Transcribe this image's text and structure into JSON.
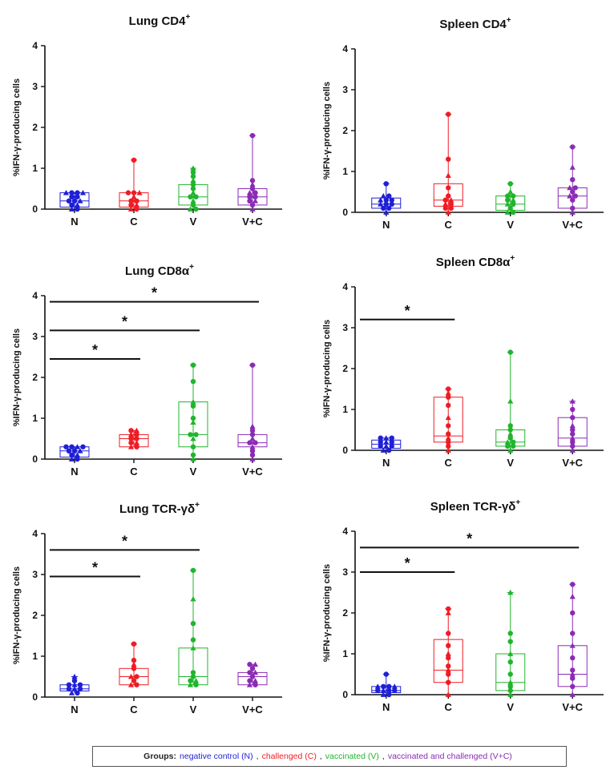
{
  "figure": {
    "ylabel": "%IFN-γ-producing cells",
    "categories": [
      "N",
      "C",
      "V",
      "V+C"
    ],
    "group_colors": [
      "#1f1fd6",
      "#ef1c24",
      "#20b52d",
      "#8a2bb5"
    ]
  },
  "legend": {
    "lead": "Groups:",
    "items": [
      {
        "text": "negative control (N)",
        "color": "#1f1fd6"
      },
      {
        "text": "challenged (C)",
        "color": "#ef1c24"
      },
      {
        "text": "vaccinated (V)",
        "color": "#20b52d"
      },
      {
        "text": "vaccinated and challenged (V+C)",
        "color": "#8a2bb5"
      }
    ]
  },
  "chart_data": [
    {
      "type": "box",
      "title": "Lung CD4",
      "title_sup": "+",
      "ylabel": "%IFN-γ-producing cells",
      "categories": [
        "N",
        "C",
        "V",
        "V+C"
      ],
      "ylim": [
        0,
        4
      ],
      "yticks": [
        0,
        1,
        2,
        3,
        4
      ],
      "boxes": [
        {
          "min": 0.0,
          "q1": 0.05,
          "median": 0.2,
          "q3": 0.4,
          "max": 0.4
        },
        {
          "min": 0.0,
          "q1": 0.05,
          "median": 0.2,
          "q3": 0.4,
          "max": 1.2
        },
        {
          "min": 0.0,
          "q1": 0.1,
          "median": 0.3,
          "q3": 0.6,
          "max": 1.0
        },
        {
          "min": 0.0,
          "q1": 0.1,
          "median": 0.3,
          "q3": 0.5,
          "max": 1.8
        }
      ],
      "points": [
        [
          0.0,
          0.0,
          0.1,
          0.1,
          0.2,
          0.2,
          0.2,
          0.3,
          0.3,
          0.4,
          0.4,
          0.4,
          0.4
        ],
        [
          0.0,
          0.0,
          0.1,
          0.1,
          0.2,
          0.2,
          0.3,
          0.4,
          0.4,
          0.4,
          1.2
        ],
        [
          0.0,
          0.0,
          0.1,
          0.2,
          0.3,
          0.3,
          0.4,
          0.5,
          0.6,
          0.7,
          0.8,
          0.9,
          1.0
        ],
        [
          0.0,
          0.1,
          0.2,
          0.2,
          0.3,
          0.3,
          0.4,
          0.4,
          0.5,
          0.6,
          0.7,
          1.8
        ]
      ],
      "significance": []
    },
    {
      "type": "box",
      "title": "Spleen CD4",
      "title_sup": "+",
      "ylabel": "%IFN-γ-producing cells",
      "categories": [
        "N",
        "C",
        "V",
        "V+C"
      ],
      "ylim": [
        0,
        4
      ],
      "yticks": [
        0,
        1,
        2,
        3,
        4
      ],
      "boxes": [
        {
          "min": 0.0,
          "q1": 0.1,
          "median": 0.2,
          "q3": 0.35,
          "max": 0.7
        },
        {
          "min": 0.0,
          "q1": 0.15,
          "median": 0.3,
          "q3": 0.7,
          "max": 2.4
        },
        {
          "min": 0.0,
          "q1": 0.05,
          "median": 0.2,
          "q3": 0.4,
          "max": 0.7
        },
        {
          "min": 0.0,
          "q1": 0.1,
          "median": 0.4,
          "q3": 0.6,
          "max": 1.6
        }
      ],
      "points": [
        [
          0.0,
          0.1,
          0.1,
          0.2,
          0.2,
          0.2,
          0.3,
          0.3,
          0.3,
          0.4,
          0.4,
          0.7
        ],
        [
          0.0,
          0.1,
          0.1,
          0.2,
          0.2,
          0.3,
          0.3,
          0.4,
          0.6,
          0.9,
          1.3,
          2.4
        ],
        [
          0.0,
          0.0,
          0.1,
          0.2,
          0.2,
          0.3,
          0.3,
          0.4,
          0.4,
          0.5,
          0.7
        ],
        [
          0.0,
          0.1,
          0.3,
          0.4,
          0.4,
          0.5,
          0.6,
          0.6,
          0.8,
          1.1,
          1.6
        ]
      ],
      "significance": []
    },
    {
      "type": "box",
      "title": "Lung CD8α",
      "title_sup": "+",
      "ylabel": "%IFN-γ-producing cells",
      "categories": [
        "N",
        "C",
        "V",
        "V+C"
      ],
      "ylim": [
        0,
        4
      ],
      "yticks": [
        0,
        1,
        2,
        3,
        4
      ],
      "boxes": [
        {
          "min": 0.0,
          "q1": 0.05,
          "median": 0.2,
          "q3": 0.3,
          "max": 0.3
        },
        {
          "min": 0.3,
          "q1": 0.3,
          "median": 0.5,
          "q3": 0.6,
          "max": 0.7
        },
        {
          "min": 0.0,
          "q1": 0.3,
          "median": 0.6,
          "q3": 1.4,
          "max": 2.3
        },
        {
          "min": 0.0,
          "q1": 0.3,
          "median": 0.4,
          "q3": 0.6,
          "max": 2.3
        }
      ],
      "points": [
        [
          0.0,
          0.0,
          0.1,
          0.1,
          0.2,
          0.2,
          0.2,
          0.3,
          0.3,
          0.3,
          0.3
        ],
        [
          0.3,
          0.3,
          0.4,
          0.4,
          0.5,
          0.5,
          0.6,
          0.6,
          0.7,
          0.7
        ],
        [
          0.0,
          0.1,
          0.3,
          0.5,
          0.6,
          0.6,
          0.9,
          1.0,
          1.3,
          1.4,
          1.9,
          2.3
        ],
        [
          0.0,
          0.1,
          0.2,
          0.3,
          0.4,
          0.4,
          0.5,
          0.6,
          0.7,
          0.8,
          2.3
        ]
      ],
      "significance": [
        {
          "from": 0,
          "to": 1,
          "y": 2.45,
          "label": "*"
        },
        {
          "from": 0,
          "to": 2,
          "y": 3.15,
          "label": "*"
        },
        {
          "from": 0,
          "to": 3,
          "y": 3.85,
          "label": "*"
        }
      ]
    },
    {
      "type": "box",
      "title": "Spleen CD8α",
      "title_sup": "+",
      "ylabel": "%IFN-γ-producing cells",
      "categories": [
        "N",
        "C",
        "V",
        "V+C"
      ],
      "ylim": [
        0,
        4
      ],
      "yticks": [
        0,
        1,
        2,
        3,
        4
      ],
      "boxes": [
        {
          "min": 0.0,
          "q1": 0.05,
          "median": 0.15,
          "q3": 0.25,
          "max": 0.3
        },
        {
          "min": 0.0,
          "q1": 0.2,
          "median": 0.35,
          "q3": 1.3,
          "max": 1.5
        },
        {
          "min": 0.0,
          "q1": 0.1,
          "median": 0.2,
          "q3": 0.5,
          "max": 2.4
        },
        {
          "min": 0.0,
          "q1": 0.1,
          "median": 0.3,
          "q3": 0.8,
          "max": 1.2
        }
      ],
      "points": [
        [
          0.0,
          0.0,
          0.1,
          0.1,
          0.1,
          0.2,
          0.2,
          0.2,
          0.3,
          0.3,
          0.3
        ],
        [
          0.0,
          0.1,
          0.2,
          0.3,
          0.4,
          0.6,
          0.8,
          1.1,
          1.3,
          1.4,
          1.5
        ],
        [
          0.0,
          0.1,
          0.1,
          0.2,
          0.2,
          0.3,
          0.4,
          0.5,
          0.6,
          1.2,
          2.4
        ],
        [
          0.0,
          0.1,
          0.2,
          0.3,
          0.4,
          0.5,
          0.6,
          0.8,
          1.0,
          1.2
        ]
      ],
      "significance": [
        {
          "from": 0,
          "to": 1,
          "y": 3.2,
          "label": "*"
        }
      ]
    },
    {
      "type": "box",
      "title": "Lung TCR-γδ",
      "title_sup": "+",
      "ylabel": "%IFN-γ-producing cells",
      "categories": [
        "N",
        "C",
        "V",
        "V+C"
      ],
      "ylim": [
        0,
        4
      ],
      "yticks": [
        0,
        1,
        2,
        3,
        4
      ],
      "boxes": [
        {
          "min": 0.1,
          "q1": 0.15,
          "median": 0.2,
          "q3": 0.3,
          "max": 0.5
        },
        {
          "min": 0.3,
          "q1": 0.3,
          "median": 0.5,
          "q3": 0.7,
          "max": 1.3
        },
        {
          "min": 0.3,
          "q1": 0.3,
          "median": 0.5,
          "q3": 1.2,
          "max": 3.1
        },
        {
          "min": 0.3,
          "q1": 0.3,
          "median": 0.5,
          "q3": 0.6,
          "max": 0.8
        }
      ],
      "points": [
        [
          0.1,
          0.1,
          0.2,
          0.2,
          0.2,
          0.3,
          0.3,
          0.3,
          0.4,
          0.5
        ],
        [
          0.3,
          0.3,
          0.4,
          0.5,
          0.5,
          0.7,
          0.8,
          0.9,
          1.3
        ],
        [
          0.3,
          0.3,
          0.4,
          0.4,
          0.5,
          0.6,
          1.2,
          1.4,
          1.8,
          2.4,
          3.1
        ],
        [
          0.3,
          0.3,
          0.4,
          0.4,
          0.5,
          0.6,
          0.6,
          0.7,
          0.8,
          0.8
        ]
      ],
      "significance": [
        {
          "from": 0,
          "to": 1,
          "y": 2.95,
          "label": "*"
        },
        {
          "from": 0,
          "to": 2,
          "y": 3.6,
          "label": "*"
        }
      ]
    },
    {
      "type": "box",
      "title": "Spleen TCR-γδ",
      "title_sup": "+",
      "ylabel": "%IFN-γ-producing cells",
      "categories": [
        "N",
        "C",
        "V",
        "V+C"
      ],
      "ylim": [
        0,
        4
      ],
      "yticks": [
        0,
        1,
        2,
        3,
        4
      ],
      "boxes": [
        {
          "min": 0.0,
          "q1": 0.05,
          "median": 0.1,
          "q3": 0.2,
          "max": 0.5
        },
        {
          "min": 0.0,
          "q1": 0.3,
          "median": 0.6,
          "q3": 1.35,
          "max": 2.1
        },
        {
          "min": 0.0,
          "q1": 0.1,
          "median": 0.3,
          "q3": 1.0,
          "max": 2.5
        },
        {
          "min": 0.0,
          "q1": 0.2,
          "median": 0.5,
          "q3": 1.2,
          "max": 2.7
        }
      ],
      "points": [
        [
          0.0,
          0.0,
          0.1,
          0.1,
          0.1,
          0.1,
          0.2,
          0.2,
          0.2,
          0.2,
          0.5
        ],
        [
          0.0,
          0.3,
          0.5,
          0.6,
          0.7,
          0.9,
          1.0,
          1.2,
          1.5,
          2.0,
          2.1
        ],
        [
          0.0,
          0.1,
          0.2,
          0.3,
          0.5,
          0.8,
          1.0,
          1.3,
          1.5,
          2.5
        ],
        [
          0.0,
          0.2,
          0.4,
          0.5,
          0.6,
          0.9,
          1.2,
          1.5,
          2.0,
          2.4,
          2.7
        ]
      ],
      "significance": [
        {
          "from": 0,
          "to": 1,
          "y": 3.0,
          "label": "*"
        },
        {
          "from": 0,
          "to": 3,
          "y": 3.6,
          "label": "*"
        }
      ]
    }
  ]
}
